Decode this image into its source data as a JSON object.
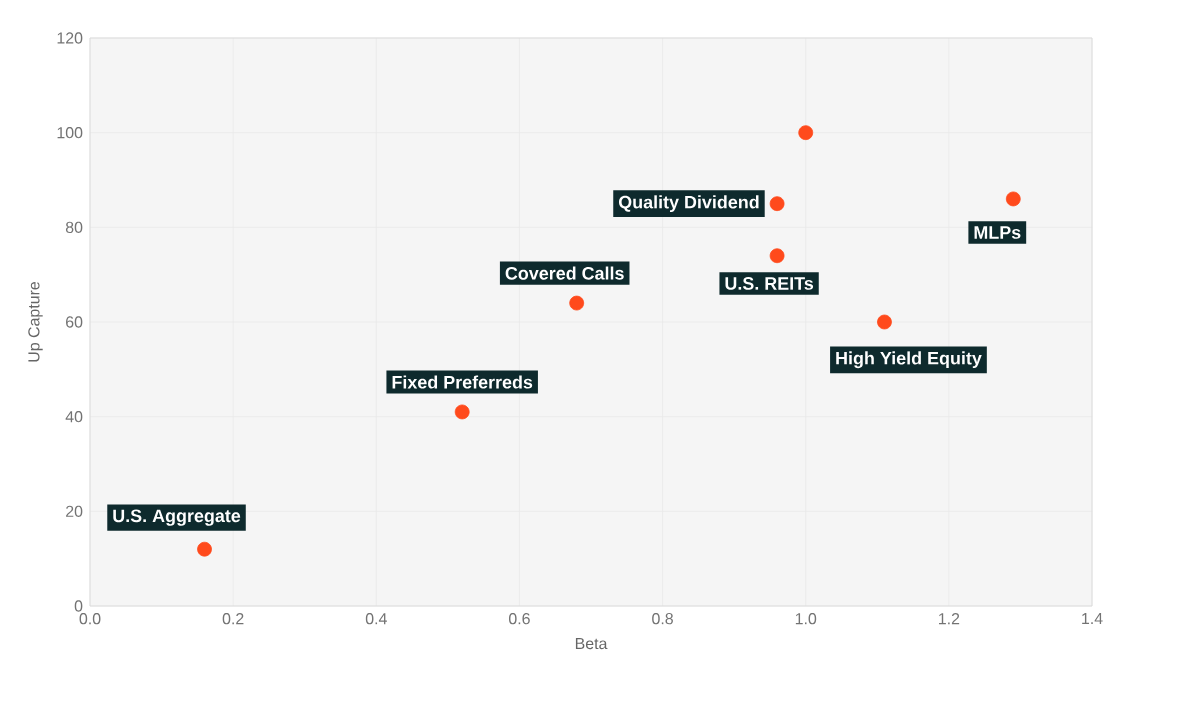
{
  "chart_data": {
    "type": "scatter",
    "xlabel": "Beta",
    "ylabel": "Up Capture",
    "x": [
      0.16,
      0.52,
      0.68,
      0.96,
      1.0,
      0.96,
      1.11,
      1.29
    ],
    "values": [
      12,
      41,
      64,
      85,
      100,
      74,
      60,
      86
    ],
    "color": "#ff4a1c",
    "marker": "circle",
    "grid": true,
    "xlim": [
      0,
      1.4
    ],
    "xticks": [
      {
        "value": 0,
        "label": "0.0"
      },
      0.2,
      0.4,
      0.6,
      0.8,
      {
        "value": 1,
        "label": "1.0"
      },
      1.2,
      1.4
    ],
    "ylim": [
      0,
      120
    ],
    "yticks": [
      0,
      20,
      40,
      60,
      80,
      100,
      120
    ],
    "annotations": [
      {
        "text": "U.S. Aggregate",
        "x": 0.16,
        "y": 12
      },
      {
        "text": "Fixed Preferreds",
        "x": 0.52,
        "y": 41
      },
      {
        "text": "Covered Calls",
        "x": 0.68,
        "y": 64
      },
      {
        "text": "Quality Dividend",
        "x": 0.96,
        "y": 85
      },
      {
        "text": "U.S. REITs",
        "x": 0.96,
        "y": 74
      },
      {
        "text": "High Yield Equity",
        "x": 1.11,
        "y": 60
      },
      {
        "text": "MLPs",
        "x": 1.29,
        "y": 86
      }
    ]
  }
}
